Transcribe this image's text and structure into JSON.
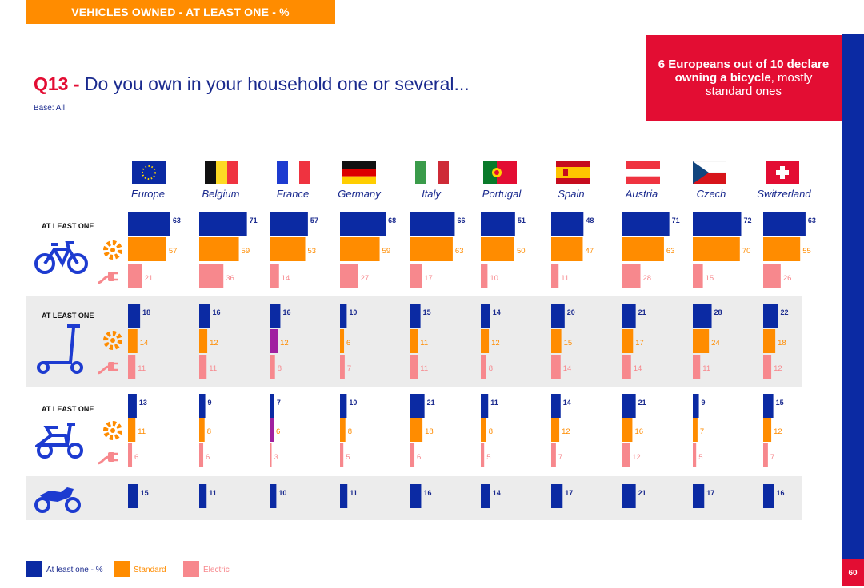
{
  "header": {
    "section_tab": "VEHICLES OWNED - AT LEAST ONE - %",
    "question_code": "Q13 -",
    "question_text": "Do you own in your household one or several...",
    "base": "Base: All",
    "page_number": "60"
  },
  "headline": {
    "strong1": "6 Europeans out of 10 declare",
    "strong2": "owning a bicycle",
    "rest1": ", mostly",
    "rest2": "standard ones"
  },
  "row_labels": {
    "bicycle": "AT LEAST ONE",
    "scooter": "AT LEAST ONE",
    "moped": "AT LEAST ONE"
  },
  "legend": {
    "at_least_one": "At least one - %",
    "standard": "Standard",
    "electric": "Electric"
  },
  "colors": {
    "at_least_one": "#0B2AA3",
    "standard": "#FF8C00",
    "electric": "#F7888D",
    "highlight": "#A020A0",
    "brand_red": "#E30D33",
    "band": "#ececec"
  },
  "chart_data": {
    "type": "bar",
    "title": "Q13 - Do you own in your household one or several...",
    "categories": [
      "Europe",
      "Belgium",
      "France",
      "Germany",
      "Italy",
      "Portugal",
      "Spain",
      "Austria",
      "Czech",
      "Switzerland"
    ],
    "groups": [
      {
        "name": "Bicycle",
        "series": [
          {
            "name": "At least one - %",
            "values": [
              63,
              71,
              57,
              68,
              66,
              51,
              48,
              71,
              72,
              63
            ]
          },
          {
            "name": "Standard",
            "values": [
              57,
              59,
              53,
              59,
              63,
              50,
              47,
              63,
              70,
              55
            ]
          },
          {
            "name": "Electric",
            "values": [
              21,
              36,
              14,
              27,
              17,
              10,
              11,
              28,
              15,
              26
            ]
          }
        ]
      },
      {
        "name": "Kick scooter",
        "series": [
          {
            "name": "At least one - %",
            "values": [
              18,
              16,
              16,
              10,
              15,
              14,
              20,
              21,
              28,
              22
            ]
          },
          {
            "name": "Standard",
            "values": [
              14,
              12,
              12,
              6,
              11,
              12,
              15,
              17,
              24,
              18
            ]
          },
          {
            "name": "Electric",
            "values": [
              11,
              11,
              8,
              7,
              11,
              8,
              14,
              14,
              11,
              12
            ]
          }
        ]
      },
      {
        "name": "Moped",
        "series": [
          {
            "name": "At least one - %",
            "values": [
              13,
              9,
              7,
              10,
              21,
              11,
              14,
              21,
              9,
              15
            ]
          },
          {
            "name": "Standard",
            "values": [
              11,
              8,
              6,
              8,
              18,
              8,
              12,
              16,
              7,
              12
            ]
          },
          {
            "name": "Electric",
            "values": [
              6,
              6,
              3,
              5,
              6,
              5,
              7,
              12,
              5,
              7
            ]
          }
        ]
      },
      {
        "name": "Motorbike",
        "series": [
          {
            "name": "At least one - %",
            "values": [
              15,
              11,
              10,
              11,
              16,
              14,
              17,
              21,
              17,
              16
            ]
          }
        ]
      }
    ],
    "highlighted_standard": [
      {
        "group": 1,
        "category": "France"
      },
      {
        "group": 2,
        "category": "France"
      }
    ]
  }
}
